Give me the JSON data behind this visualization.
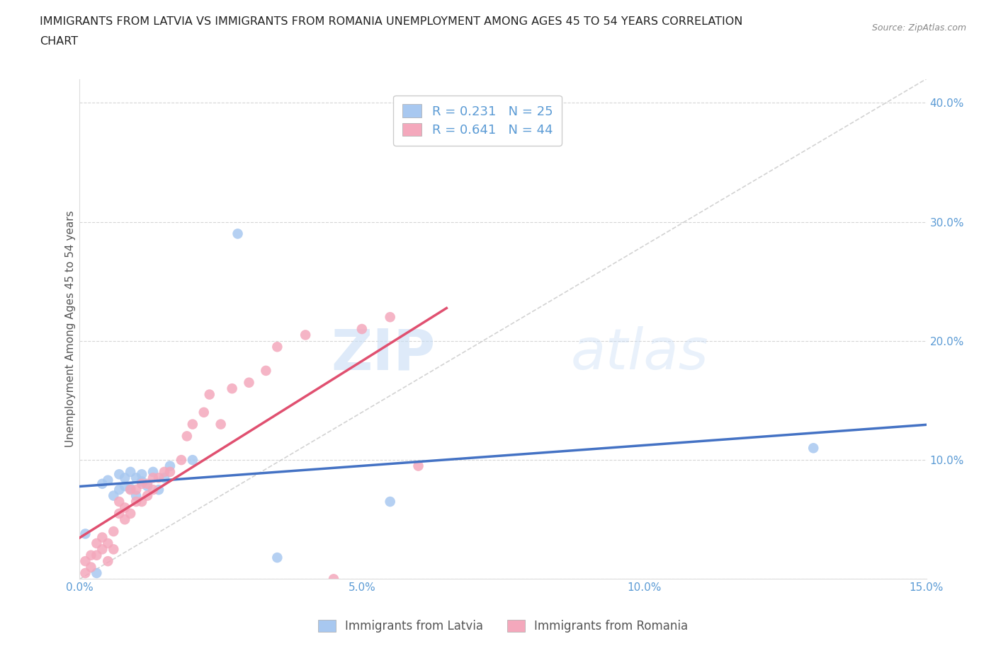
{
  "title_line1": "IMMIGRANTS FROM LATVIA VS IMMIGRANTS FROM ROMANIA UNEMPLOYMENT AMONG AGES 45 TO 54 YEARS CORRELATION",
  "title_line2": "CHART",
  "source": "Source: ZipAtlas.com",
  "ylabel": "Unemployment Among Ages 45 to 54 years",
  "xlim": [
    0.0,
    0.15
  ],
  "ylim": [
    0.0,
    0.42
  ],
  "xticks": [
    0.0,
    0.05,
    0.1,
    0.15
  ],
  "xticklabels": [
    "0.0%",
    "5.0%",
    "10.0%",
    "15.0%"
  ],
  "yticks": [
    0.0,
    0.1,
    0.2,
    0.3,
    0.4
  ],
  "yticklabels": [
    "",
    "10.0%",
    "20.0%",
    "30.0%",
    "40.0%"
  ],
  "latvia_color": "#a8c8f0",
  "romania_color": "#f4a8bc",
  "latvia_R": 0.231,
  "latvia_N": 25,
  "romania_R": 0.641,
  "romania_N": 44,
  "trend_color_latvia": "#4472c4",
  "trend_color_romania": "#e05070",
  "trend_color_diagonal": "#c8c8c8",
  "background_color": "#ffffff",
  "watermark_zip": "ZIP",
  "watermark_atlas": "atlas",
  "legend_label_latvia": "Immigrants from Latvia",
  "legend_label_romania": "Immigrants from Romania",
  "latvia_x": [
    0.001,
    0.003,
    0.004,
    0.005,
    0.006,
    0.007,
    0.007,
    0.008,
    0.008,
    0.009,
    0.009,
    0.01,
    0.01,
    0.011,
    0.011,
    0.012,
    0.013,
    0.014,
    0.015,
    0.016,
    0.02,
    0.028,
    0.055,
    0.13,
    0.035
  ],
  "latvia_y": [
    0.038,
    0.005,
    0.08,
    0.083,
    0.07,
    0.075,
    0.088,
    0.078,
    0.085,
    0.076,
    0.09,
    0.07,
    0.085,
    0.082,
    0.088,
    0.078,
    0.09,
    0.075,
    0.085,
    0.095,
    0.1,
    0.29,
    0.065,
    0.11,
    0.018
  ],
  "romania_x": [
    0.001,
    0.001,
    0.002,
    0.002,
    0.003,
    0.003,
    0.004,
    0.004,
    0.005,
    0.005,
    0.006,
    0.006,
    0.007,
    0.007,
    0.008,
    0.008,
    0.009,
    0.009,
    0.01,
    0.01,
    0.011,
    0.011,
    0.012,
    0.012,
    0.013,
    0.013,
    0.014,
    0.015,
    0.016,
    0.018,
    0.019,
    0.02,
    0.022,
    0.023,
    0.025,
    0.027,
    0.03,
    0.033,
    0.035,
    0.04,
    0.045,
    0.05,
    0.055,
    0.06
  ],
  "romania_y": [
    0.005,
    0.015,
    0.01,
    0.02,
    0.02,
    0.03,
    0.025,
    0.035,
    0.015,
    0.03,
    0.025,
    0.04,
    0.055,
    0.065,
    0.05,
    0.06,
    0.055,
    0.075,
    0.065,
    0.075,
    0.065,
    0.08,
    0.07,
    0.08,
    0.075,
    0.085,
    0.085,
    0.09,
    0.09,
    0.1,
    0.12,
    0.13,
    0.14,
    0.155,
    0.13,
    0.16,
    0.165,
    0.175,
    0.195,
    0.205,
    0.0,
    0.21,
    0.22,
    0.095
  ]
}
